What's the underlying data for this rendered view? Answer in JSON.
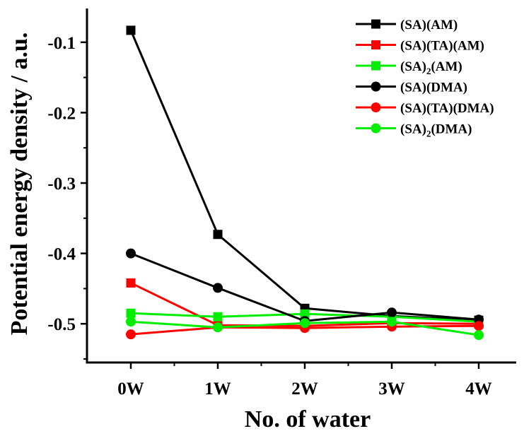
{
  "chart_data": {
    "type": "line",
    "xlabel": "No. of water",
    "ylabel": "Potential energy density / a.u.",
    "categories": [
      "0W",
      "1W",
      "2W",
      "3W",
      "4W"
    ],
    "ylim": [
      -0.555,
      -0.052
    ],
    "yticks": [
      "-0.1",
      "-0.2",
      "-0.3",
      "-0.4",
      "-0.5"
    ],
    "ytick_values": [
      -0.1,
      -0.2,
      -0.3,
      -0.4,
      -0.5
    ],
    "legend_position": "top-right",
    "grid": false,
    "series": [
      {
        "name_main": "(SA)(AM)",
        "name_sub": "",
        "name_tail": "",
        "color": "#000000",
        "marker": "square",
        "values": [
          -0.083,
          -0.373,
          -0.478,
          -0.489,
          -0.495
        ]
      },
      {
        "name_main": "(SA)(TA)(AM)",
        "name_sub": "",
        "name_tail": "",
        "color": "#ff0000",
        "marker": "square",
        "values": [
          -0.442,
          -0.502,
          -0.503,
          -0.499,
          -0.5
        ]
      },
      {
        "name_main": "(SA)",
        "name_sub": "2",
        "name_tail": "(AM)",
        "color": "#00ee00",
        "marker": "square",
        "values": [
          -0.485,
          -0.49,
          -0.486,
          -0.49,
          -0.497
        ]
      },
      {
        "name_main": "(SA)(DMA)",
        "name_sub": "",
        "name_tail": "",
        "color": "#000000",
        "marker": "circle",
        "values": [
          -0.4,
          -0.449,
          -0.496,
          -0.484,
          -0.494
        ]
      },
      {
        "name_main": "(SA)(TA)(DMA)",
        "name_sub": "",
        "name_tail": "",
        "color": "#ff0000",
        "marker": "circle",
        "values": [
          -0.515,
          -0.505,
          -0.506,
          -0.504,
          -0.503
        ]
      },
      {
        "name_main": "(SA)",
        "name_sub": "2",
        "name_tail": "(DMA)",
        "color": "#00ee00",
        "marker": "circle",
        "values": [
          -0.497,
          -0.505,
          -0.499,
          -0.497,
          -0.516
        ]
      }
    ]
  }
}
